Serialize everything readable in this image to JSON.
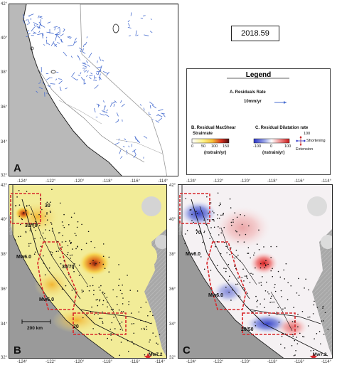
{
  "date_label": "2018.59",
  "panels": {
    "a": {
      "label": "A",
      "lat_ticks": [
        "42°",
        "40°",
        "38°",
        "36°",
        "34°",
        "32°"
      ]
    },
    "b": {
      "label": "B",
      "lat_ticks": [
        "42°",
        "40°",
        "38°",
        "36°",
        "34°",
        "32°"
      ],
      "lon_ticks_top": [
        "-124°",
        "-122°",
        "-120°",
        "-118°",
        "-116°",
        "-114°"
      ],
      "lon_ticks_bottom": [
        "-124°",
        "-122°",
        "-120°",
        "-118°",
        "-116°",
        "-114°"
      ],
      "annotations": {
        "a1": "30",
        "a2": "30/70",
        "a3": "30/70",
        "mw1": "Mw6.0",
        "mw2": "Mw6.0",
        "a4": "20",
        "a5": "Mw7.2"
      },
      "scale_bar": "200 km"
    },
    "c": {
      "label": "C",
      "lat_ticks": [
        "42°",
        "40°",
        "38°",
        "36°",
        "34°",
        "32°"
      ],
      "lon_ticks_top": [
        "-124°",
        "-122°",
        "-120°",
        "-118°",
        "-116°",
        "-114°"
      ],
      "lon_ticks_bottom": [
        "-124°",
        "-122°",
        "-120°",
        "-118°",
        "-116°",
        "-114°"
      ],
      "annotations": {
        "a1": "70",
        "mw1": "Mw6.0",
        "mw2": "Mw6.0",
        "a2": "20/50",
        "a3": "Mw7.2"
      }
    }
  },
  "legend": {
    "title": "Legend",
    "residual_rate": {
      "title": "A. Residuals Rate",
      "scale": "10mm/yr",
      "arrow_color": "#4a6fd0"
    },
    "maxshear": {
      "title_line1": "B. Residual MaxShear",
      "title_line2": "Strainrate",
      "ticks": [
        "0",
        "50",
        "100",
        "150"
      ],
      "unit": "(nstrain/yr)"
    },
    "dilatation": {
      "title": "C. Residual Dilatation rate",
      "ticks": [
        "-100",
        "0",
        "100"
      ],
      "unit": "(nstrain/yr)",
      "symbol_value": "100",
      "shortening": "Shortening",
      "extension": "Extension"
    }
  }
}
